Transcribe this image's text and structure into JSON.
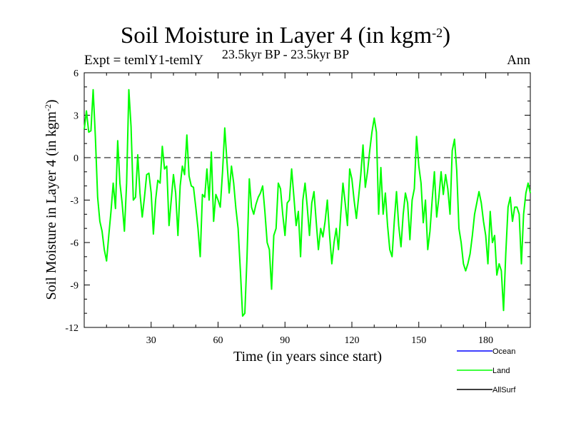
{
  "chart_data": {
    "type": "line",
    "title": "Soil Moisture in Layer 4 (in kgm",
    "title_sup": "-2",
    "title_close": ")",
    "subtitle": "23.5kyr BP - 23.5kyr BP",
    "expt_label": "Expt = temlY1-temlY",
    "period_label": "Ann",
    "xlabel": "Time (in years since start)",
    "ylabel": "Soil Moisture in Layer 4 (in kgm",
    "ylabel_sup": "-2",
    "ylabel_close": ")",
    "xlim": [
      0,
      200
    ],
    "ylim": [
      -12,
      6
    ],
    "xticks": [
      30,
      60,
      90,
      120,
      150,
      180
    ],
    "yticks": [
      6,
      3,
      0,
      -3,
      -6,
      -9,
      -12
    ],
    "zero_line": 0,
    "legend": [
      {
        "name": "Ocean",
        "color": "#0000ff"
      },
      {
        "name": "Land",
        "color": "#00ff00"
      },
      {
        "name": "AllSurf",
        "color": "#000000"
      }
    ],
    "series": [
      {
        "name": "Land",
        "color": "#00ff00",
        "x": [
          0,
          1,
          2,
          3,
          4,
          5,
          6,
          7,
          8,
          9,
          10,
          11,
          12,
          13,
          14,
          15,
          16,
          17,
          18,
          19,
          20,
          21,
          22,
          23,
          24,
          25,
          26,
          27,
          28,
          29,
          30,
          31,
          32,
          33,
          34,
          35,
          36,
          37,
          38,
          39,
          40,
          41,
          42,
          43,
          44,
          45,
          46,
          47,
          48,
          49,
          50,
          51,
          52,
          53,
          54,
          55,
          56,
          57,
          58,
          59,
          60,
          61,
          62,
          63,
          64,
          65,
          66,
          67,
          68,
          69,
          70,
          71,
          72,
          73,
          74,
          75,
          76,
          77,
          78,
          79,
          80,
          81,
          82,
          83,
          84,
          85,
          86,
          87,
          88,
          89,
          90,
          91,
          92,
          93,
          94,
          95,
          96,
          97,
          98,
          99,
          100,
          101,
          102,
          103,
          104,
          105,
          106,
          107,
          108,
          109,
          110,
          111,
          112,
          113,
          114,
          115,
          116,
          117,
          118,
          119,
          120,
          121,
          122,
          123,
          124,
          125,
          126,
          127,
          128,
          129,
          130,
          131,
          132,
          133,
          134,
          135,
          136,
          137,
          138,
          139,
          140,
          141,
          142,
          143,
          144,
          145,
          146,
          147,
          148,
          149,
          150,
          151,
          152,
          153,
          154,
          155,
          156,
          157,
          158,
          159,
          160,
          161,
          162,
          163,
          164,
          165,
          166,
          167,
          168,
          169,
          170,
          171,
          172,
          173,
          174,
          175,
          176,
          177,
          178,
          179,
          180,
          181,
          182,
          183,
          184,
          185,
          186,
          187,
          188,
          189,
          190,
          191,
          192,
          193,
          194,
          195,
          196,
          197,
          198,
          199,
          200
        ],
        "y": [
          2.0,
          3.3,
          1.8,
          1.9,
          4.8,
          1.5,
          -2.8,
          -4.5,
          -5.2,
          -6.5,
          -7.3,
          -5.5,
          -3.8,
          -1.8,
          -3.6,
          1.2,
          -1.8,
          -3.2,
          -5.2,
          -1.8,
          4.8,
          2.2,
          -3.0,
          -2.8,
          0.2,
          -2.5,
          -4.2,
          -2.8,
          -1.2,
          -1.1,
          -2.5,
          -5.4,
          -3.0,
          -1.6,
          -1.8,
          0.8,
          -0.8,
          -0.6,
          -4.8,
          -3.0,
          -1.2,
          -2.5,
          -5.5,
          -2.0,
          -0.6,
          -1.2,
          1.6,
          -1.3,
          -2.0,
          -2.1,
          -3.5,
          -5.0,
          -7.0,
          -2.6,
          -2.8,
          -0.8,
          -3.0,
          0.4,
          -4.5,
          -2.6,
          -3.0,
          -3.5,
          -1.0,
          2.1,
          -0.3,
          -2.5,
          -0.6,
          -1.8,
          -3.6,
          -5.0,
          -8.0,
          -11.2,
          -11.0,
          -7.0,
          -1.5,
          -3.5,
          -4.0,
          -3.3,
          -2.8,
          -2.5,
          -2.0,
          -3.8,
          -6.0,
          -6.5,
          -9.3,
          -5.5,
          -5.0,
          -1.8,
          -2.2,
          -4.0,
          -5.5,
          -3.2,
          -3.0,
          -0.8,
          -2.8,
          -4.8,
          -3.8,
          -7.0,
          -3.0,
          -1.8,
          -3.5,
          -5.5,
          -3.2,
          -2.4,
          -4.5,
          -6.5,
          -5.0,
          -5.6,
          -4.5,
          -3.0,
          -5.5,
          -7.5,
          -6.0,
          -5.0,
          -6.5,
          -4.0,
          -1.8,
          -3.2,
          -4.8,
          -0.8,
          -1.5,
          -3.0,
          -4.3,
          -2.8,
          -1.2,
          0.9,
          -2.1,
          -1.0,
          0.5,
          1.8,
          2.8,
          1.8,
          -4.0,
          -0.7,
          -4.0,
          -2.5,
          -4.8,
          -6.5,
          -7.0,
          -4.5,
          -2.4,
          -4.8,
          -6.3,
          -4.0,
          -2.5,
          -3.2,
          -5.8,
          -3.0,
          -2.2,
          1.5,
          -0.6,
          -1.8,
          -4.6,
          -3.0,
          -6.5,
          -5.2,
          -3.0,
          -1.0,
          -4.2,
          -2.8,
          -1.0,
          -2.6,
          -1.2,
          -2.2,
          -4.0,
          0.5,
          1.3,
          -0.9,
          -5.0,
          -6.0,
          -7.5,
          -8.0,
          -7.5,
          -6.8,
          -5.5,
          -4.0,
          -3.2,
          -2.4,
          -3.2,
          -4.5,
          -5.5,
          -7.5,
          -3.8,
          -6.0,
          -5.5,
          -8.3,
          -7.5,
          -8.0,
          -10.8,
          -6.8,
          -3.5,
          -2.8,
          -4.5,
          -3.5,
          -3.5,
          -4.0,
          -7.5,
          -4.0,
          -2.5,
          -1.8,
          -2.5
        ]
      }
    ]
  }
}
